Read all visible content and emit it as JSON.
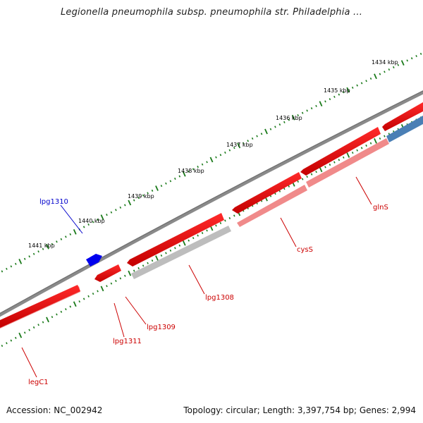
{
  "title": "Legionella pneumophila subsp. pneumophila str. Philadelphia ...",
  "footer": {
    "accession": "Accession: NC_002942",
    "summary": "Topology: circular; Length: 3,397,754 bp; Genes: 2,994"
  },
  "ruler": {
    "ticks": [
      "1434 kbp",
      "1435 kbp",
      "1436 kbp",
      "1437 kbp",
      "1438 kbp",
      "1439 kbp",
      "1440 kbp",
      "1441 kbp"
    ]
  },
  "genes": [
    {
      "name": "lpg1310",
      "strand": "forward",
      "color": "#0000cc"
    },
    {
      "name": "glnS",
      "strand": "reverse",
      "color": "#cc0000"
    },
    {
      "name": "cysS",
      "strand": "reverse",
      "color": "#cc0000"
    },
    {
      "name": "lpg1308",
      "strand": "reverse",
      "color": "#cc0000"
    },
    {
      "name": "lpg1309",
      "strand": "reverse",
      "color": "#cc0000"
    },
    {
      "name": "lpg1311",
      "strand": "reverse",
      "color": "#cc0000"
    },
    {
      "name": "legC1",
      "strand": "reverse",
      "color": "#cc0000"
    }
  ],
  "colors": {
    "forward_gene": "#0000ee",
    "reverse_gene": "#ee0000",
    "backbone": "#777777",
    "tick": "#1a7a1a",
    "rna_feature": "#4a7fb5"
  }
}
